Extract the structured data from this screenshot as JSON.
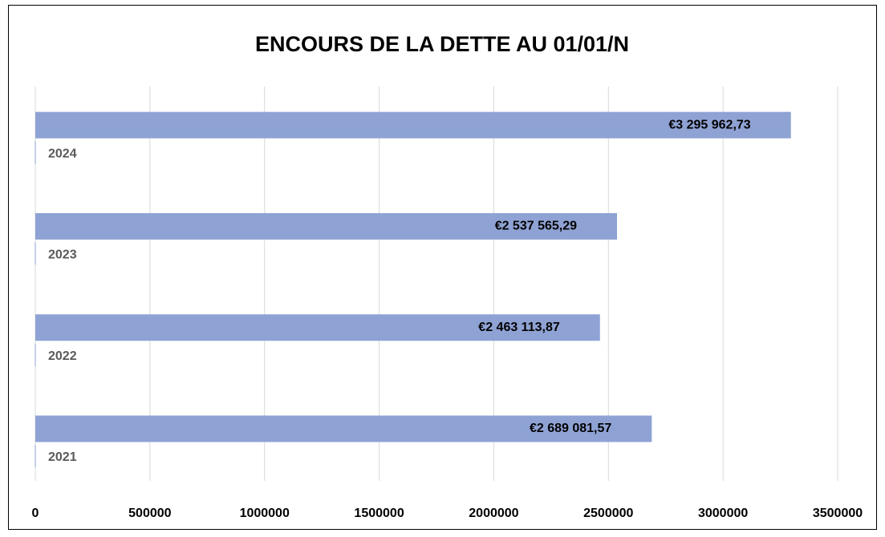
{
  "chart_data": {
    "type": "hbar",
    "title": "ENCOURS DE LA DETTE AU 01/01/N",
    "categories": [
      "2021",
      "2022",
      "2023",
      "2024"
    ],
    "values": [
      2689081.57,
      2463113.87,
      2537565.29,
      3295962.73
    ],
    "value_labels": [
      "€2 689 081,57",
      "€2 463 113,87",
      "€2 537 565,29",
      "€3 295 962,73"
    ],
    "color": "#8fa2d4",
    "xlim": [
      0,
      3500000
    ],
    "xticks": [
      0,
      500000,
      1000000,
      1500000,
      2000000,
      2500000,
      3000000,
      3500000
    ],
    "grid": true
  }
}
